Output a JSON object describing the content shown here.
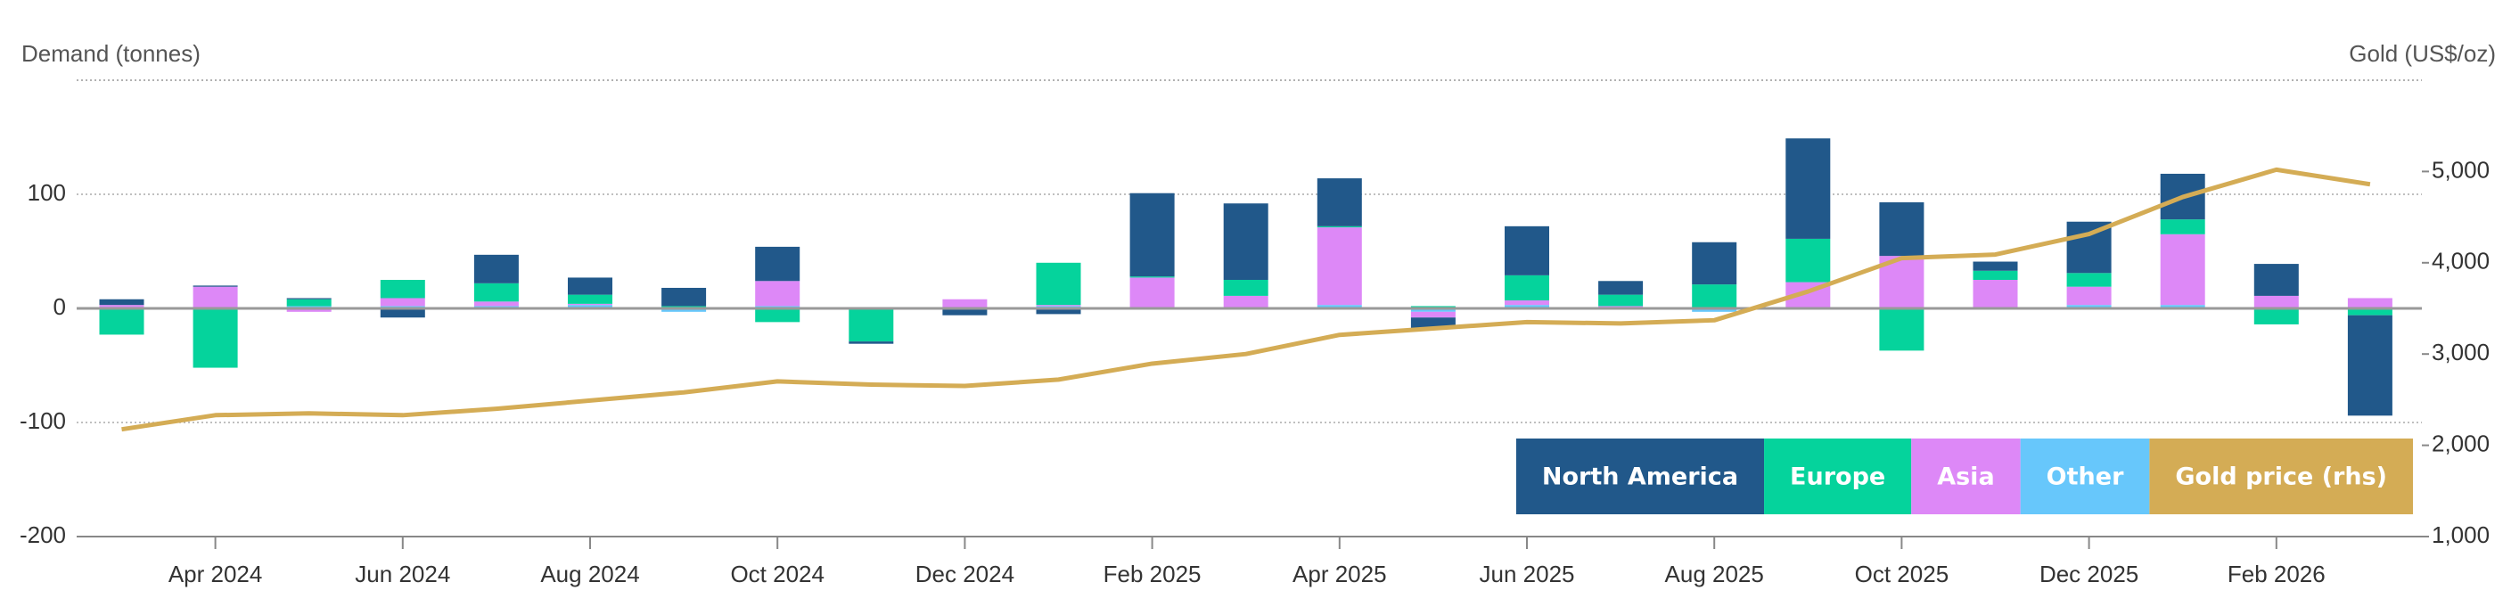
{
  "chart_data": {
    "type": "bar",
    "y_title": "Demand (tonnes)",
    "y2_title": "Gold (US$/oz)",
    "categories": [
      null,
      "Apr 2024",
      null,
      "Jun 2024",
      null,
      "Aug 2024",
      null,
      "Oct 2024",
      null,
      "Dec 2024",
      null,
      "Feb 2025",
      null,
      "Apr 2025",
      null,
      "Jun 2025",
      null,
      "Aug 2025",
      null,
      "Oct 2025",
      null,
      "Dec 2025",
      null,
      "Feb 2026",
      null
    ],
    "series": [
      {
        "name": "North America",
        "color": "#21588a",
        "values": [
          5,
          1,
          1,
          -8,
          25,
          15,
          16,
          30,
          -2,
          -6,
          -5,
          73,
          67,
          42,
          -10,
          43,
          12,
          37,
          88,
          47,
          8,
          45,
          40,
          28,
          -88
        ]
      },
      {
        "name": "Europe",
        "color": "#05d39c",
        "values": [
          -23,
          -52,
          6,
          16,
          16,
          8,
          1,
          -12,
          -28,
          0,
          37,
          1,
          14,
          1,
          2,
          22,
          10,
          20,
          38,
          -37,
          8,
          12,
          13,
          -14,
          -6
        ]
      },
      {
        "name": "Asia",
        "color": "#dd88f7",
        "values": [
          2,
          18,
          -3,
          7,
          4,
          1,
          1,
          22,
          0,
          8,
          1,
          26,
          10,
          68,
          -5,
          4,
          1,
          1,
          22,
          45,
          24,
          16,
          62,
          10,
          8
        ]
      },
      {
        "name": "Other",
        "color": "#67c7fb",
        "values": [
          1,
          1,
          2,
          2,
          2,
          3,
          -3,
          2,
          -1,
          0,
          2,
          1,
          1,
          3,
          -3,
          3,
          1,
          -3,
          1,
          1,
          1,
          3,
          3,
          1,
          1
        ]
      },
      {
        "name": "Gold price (rhs)",
        "color": "#d4ac55",
        "type": "line",
        "axis": "y2",
        "values": [
          2175,
          2330,
          2350,
          2330,
          2400,
          2490,
          2580,
          2700,
          2665,
          2650,
          2720,
          2895,
          3000,
          3210,
          3280,
          3350,
          3335,
          3370,
          3685,
          4050,
          4090,
          4315,
          4720,
          5020,
          4860
        ]
      }
    ],
    "ylim": [
      -200,
      200
    ],
    "yticks": [
      -200,
      -100,
      0,
      100
    ],
    "y2lim": [
      1000,
      6000
    ],
    "y2ticks": [
      {
        "value": 1000,
        "label": "1,000"
      },
      {
        "value": 2000,
        "label": "2,000"
      },
      {
        "value": 3000,
        "label": "3,000"
      },
      {
        "value": 4000,
        "label": "4,000"
      },
      {
        "value": 5000,
        "label": "5,000"
      }
    ],
    "stacked": true,
    "grid": true,
    "legend_position": "bottom-right"
  }
}
